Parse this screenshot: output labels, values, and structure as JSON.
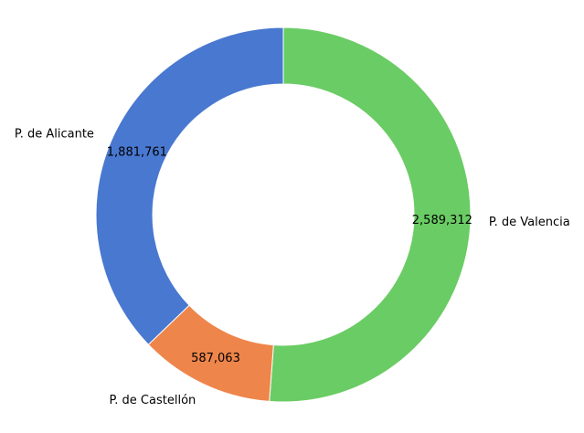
{
  "chart_data": {
    "type": "pie",
    "variant": "donut",
    "title": "",
    "categories": [
      "P. de Valencia",
      "P. de Castellón",
      "P. de Alicante"
    ],
    "values": [
      2589312,
      587063,
      1881761
    ],
    "value_labels": [
      "2,589,312",
      "587,063",
      "1,881,761"
    ],
    "colors": [
      "#6acc64",
      "#ee854a",
      "#4878d0"
    ],
    "start_angle": "top, clockwise",
    "legend": "none"
  }
}
